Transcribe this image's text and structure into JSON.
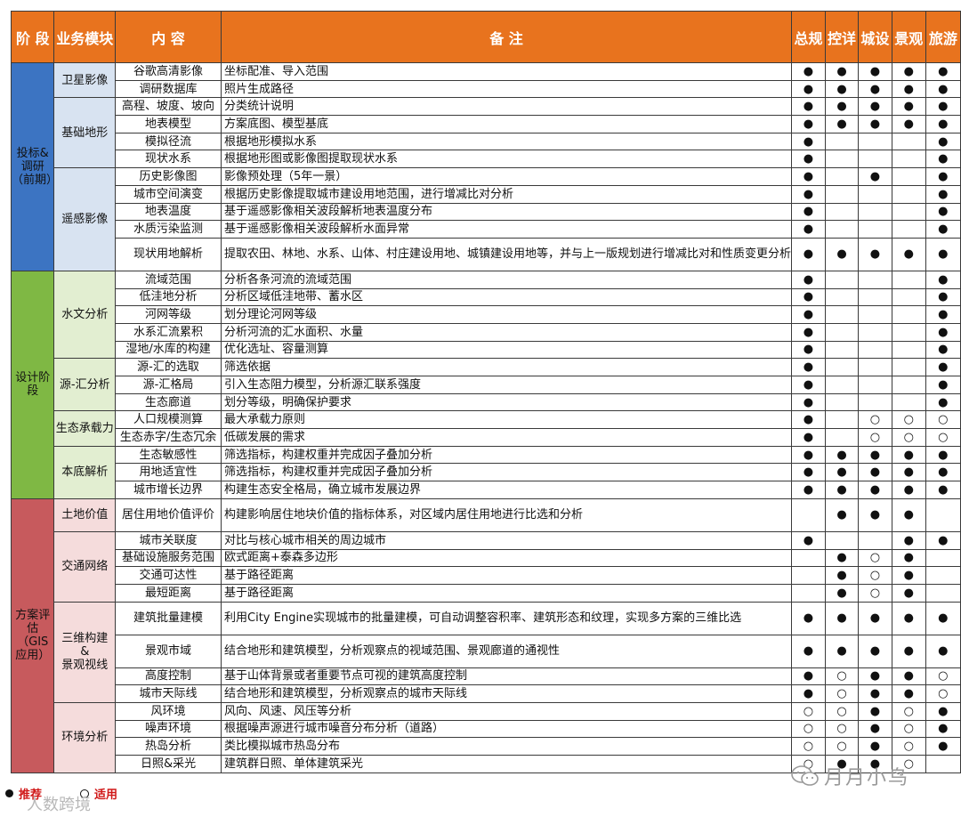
{
  "headers": [
    "阶 段",
    "业务模块",
    "内 容",
    "备 注",
    "总规",
    "控详",
    "城设",
    "景观",
    "旅游"
  ],
  "colors": {
    "header": "#e8731e",
    "stage": [
      "#2e6fbf",
      "#7fb43a",
      "#c9444a"
    ],
    "module": [
      "#d8e3f1",
      "#e2eed1",
      "#f4dcdc"
    ]
  },
  "stages": [
    {
      "label": "投标&调研\n（前期）",
      "color": "#3c74c2"
    },
    {
      "label": "设计阶段",
      "color": "#7fb844"
    },
    {
      "label": "方案评估\n（GIS应用）",
      "color": "#c75a5d"
    }
  ],
  "modules": [
    {
      "label": "卫星影像",
      "rows": 2,
      "stage": 0
    },
    {
      "label": "基础地形",
      "rows": 4,
      "stage": 0
    },
    {
      "label": "遥感影像",
      "rows": 5,
      "stage": 0,
      "tallRows": 1
    },
    {
      "label": "水文分析",
      "rows": 5,
      "stage": 1
    },
    {
      "label": "源-汇分析",
      "rows": 3,
      "stage": 1
    },
    {
      "label": "生态承载力",
      "rows": 2,
      "stage": 1
    },
    {
      "label": "本底解析",
      "rows": 3,
      "stage": 1
    },
    {
      "label": "土地价值",
      "rows": 1,
      "stage": 2,
      "tallRows": 1
    },
    {
      "label": "交通网络",
      "rows": 4,
      "stage": 2
    },
    {
      "label": "三维构建\n&\n景观视线",
      "rows": 4,
      "stage": 2,
      "tallRows": 2
    },
    {
      "label": "环境分析",
      "rows": 4,
      "stage": 2
    }
  ],
  "rows": [
    {
      "content": "谷歌高清影像",
      "note": "坐标配准、导入范围",
      "marks": [
        "●",
        "●",
        "●",
        "●",
        "●"
      ]
    },
    {
      "content": "调研数据库",
      "note": "照片生成路径",
      "marks": [
        "●",
        "●",
        "●",
        "●",
        "●"
      ]
    },
    {
      "content": "高程、坡度、坡向",
      "note": "分类统计说明",
      "marks": [
        "●",
        "●",
        "●",
        "●",
        "●"
      ]
    },
    {
      "content": "地表模型",
      "note": "方案底图、模型基底",
      "marks": [
        "●",
        "●",
        "●",
        "●",
        "●"
      ]
    },
    {
      "content": "模拟径流",
      "note": "根据地形模拟水系",
      "marks": [
        "●",
        "",
        "",
        "",
        "●"
      ]
    },
    {
      "content": "现状水系",
      "note": "根据地形图或影像图提取现状水系",
      "marks": [
        "●",
        "",
        "",
        "",
        "●"
      ]
    },
    {
      "content": "历史影像图",
      "note": "影像预处理（5年一景）",
      "marks": [
        "●",
        "",
        "●",
        "",
        "●"
      ]
    },
    {
      "content": "城市空间演变",
      "note": "根据历史影像提取城市建设用地范围，进行增减比对分析",
      "marks": [
        "●",
        "",
        "",
        "",
        "●"
      ]
    },
    {
      "content": "地表温度",
      "note": "基于遥感影像相关波段解析地表温度分布",
      "marks": [
        "●",
        "",
        "",
        "",
        "●"
      ]
    },
    {
      "content": "水质污染监测",
      "note": "基于遥感影像相关波段解析水面异常",
      "marks": [
        "●",
        "",
        "",
        "",
        "●"
      ]
    },
    {
      "content": "现状用地解析",
      "note": "提取农田、林地、水系、山体、村庄建设用地、城镇建设用地等，并与上一版规划进行增减比对和性质变更分析",
      "marks": [
        "●",
        "●",
        "●",
        "●",
        "●"
      ],
      "tall": true
    },
    {
      "content": "流域范围",
      "note": "分析各条河流的流域范围",
      "marks": [
        "●",
        "",
        "",
        "",
        "●"
      ]
    },
    {
      "content": "低洼地分析",
      "note": "分析区域低洼地带、蓄水区",
      "marks": [
        "●",
        "",
        "",
        "",
        "●"
      ]
    },
    {
      "content": "河网等级",
      "note": "划分理论河网等级",
      "marks": [
        "●",
        "",
        "",
        "",
        "●"
      ]
    },
    {
      "content": "水系汇流累积",
      "note": "分析河流的汇水面积、水量",
      "marks": [
        "●",
        "",
        "",
        "",
        "●"
      ]
    },
    {
      "content": "湿地/水库的构建",
      "note": "优化选址、容量测算",
      "marks": [
        "●",
        "",
        "",
        "",
        "●"
      ]
    },
    {
      "content": "源-汇的选取",
      "note": "筛选依据",
      "marks": [
        "●",
        "",
        "",
        "",
        "●"
      ]
    },
    {
      "content": "源-汇格局",
      "note": "引入生态阻力模型，分析源汇联系强度",
      "marks": [
        "●",
        "",
        "",
        "",
        "●"
      ]
    },
    {
      "content": "生态廊道",
      "note": "划分等级，明确保护要求",
      "marks": [
        "●",
        "",
        "",
        "",
        "●"
      ]
    },
    {
      "content": "人口规模测算",
      "note": "最大承载力原则",
      "marks": [
        "●",
        "",
        "○",
        "○",
        "○"
      ]
    },
    {
      "content": "生态赤字/生态冗余",
      "note": "低碳发展的需求",
      "marks": [
        "●",
        "",
        "○",
        "○",
        "○"
      ]
    },
    {
      "content": "生态敏感性",
      "note": "筛选指标，构建权重并完成因子叠加分析",
      "marks": [
        "●",
        "●",
        "●",
        "●",
        "●"
      ]
    },
    {
      "content": "用地适宜性",
      "note": "筛选指标，构建权重并完成因子叠加分析",
      "marks": [
        "●",
        "●",
        "●",
        "●",
        "●"
      ]
    },
    {
      "content": "城市增长边界",
      "note": "构建生态安全格局，确立城市发展边界",
      "marks": [
        "●",
        "●",
        "●",
        "●",
        "●"
      ]
    },
    {
      "content": "居住用地价值评价",
      "note": "构建影响居住地块价值的指标体系，对区域内居住用地进行比选和分析",
      "marks": [
        "",
        "●",
        "●",
        "●",
        ""
      ],
      "tall": true
    },
    {
      "content": "城市关联度",
      "note": "对比与核心城市相关的周边城市",
      "marks": [
        "●",
        "",
        "",
        "●",
        "●"
      ]
    },
    {
      "content": "基础设施服务范围",
      "note": "欧式距离+泰森多边形",
      "marks": [
        "",
        "●",
        "○",
        "●",
        ""
      ]
    },
    {
      "content": "交通可达性",
      "note": "基于路径距离",
      "marks": [
        "",
        "●",
        "○",
        "●",
        ""
      ]
    },
    {
      "content": "最短距离",
      "note": "基于路径距离",
      "marks": [
        "",
        "●",
        "○",
        "●",
        ""
      ]
    },
    {
      "content": "建筑批量建模",
      "note": "利用City Engine实现城市的批量建模，可自动调整容积率、建筑形态和纹理，实现多方案的三维比选",
      "marks": [
        "●",
        "●",
        "●",
        "●",
        "●"
      ],
      "tall": true
    },
    {
      "content": "景观市域",
      "note": "结合地形和建筑模型，分析观察点的视域范围、景观廊道的通视性",
      "marks": [
        "●",
        "●",
        "●",
        "●",
        "●"
      ],
      "tall": true
    },
    {
      "content": "高度控制",
      "note": "基于山体背景或者重要节点可视的建筑高度控制",
      "marks": [
        "●",
        "○",
        "●",
        "●",
        "○"
      ]
    },
    {
      "content": "城市天际线",
      "note": "结合地形和建筑模型，分析观察点的城市天际线",
      "marks": [
        "●",
        "○",
        "●",
        "●",
        "○"
      ]
    },
    {
      "content": "风环境",
      "note": "风向、风速、风压等分析",
      "marks": [
        "○",
        "○",
        "●",
        "○",
        "●"
      ]
    },
    {
      "content": "噪声环境",
      "note": "根据噪声源进行城市噪音分布分析（道路）",
      "marks": [
        "○",
        "○",
        "●",
        "○",
        "●"
      ]
    },
    {
      "content": "热岛分析",
      "note": "类比模拟城市热岛分布",
      "marks": [
        "○",
        "○",
        "●",
        "○",
        "●"
      ]
    },
    {
      "content": "日照&采光",
      "note": "建筑群日照、单体建筑采光",
      "marks": [
        "○",
        "●",
        "●",
        "○",
        ""
      ]
    }
  ],
  "legend": {
    "recommend": "推荐",
    "apply": "适用",
    "source": "人数跨境"
  },
  "watermark": {
    "text": "月月小鸟",
    "icon": "wechat-icon"
  }
}
